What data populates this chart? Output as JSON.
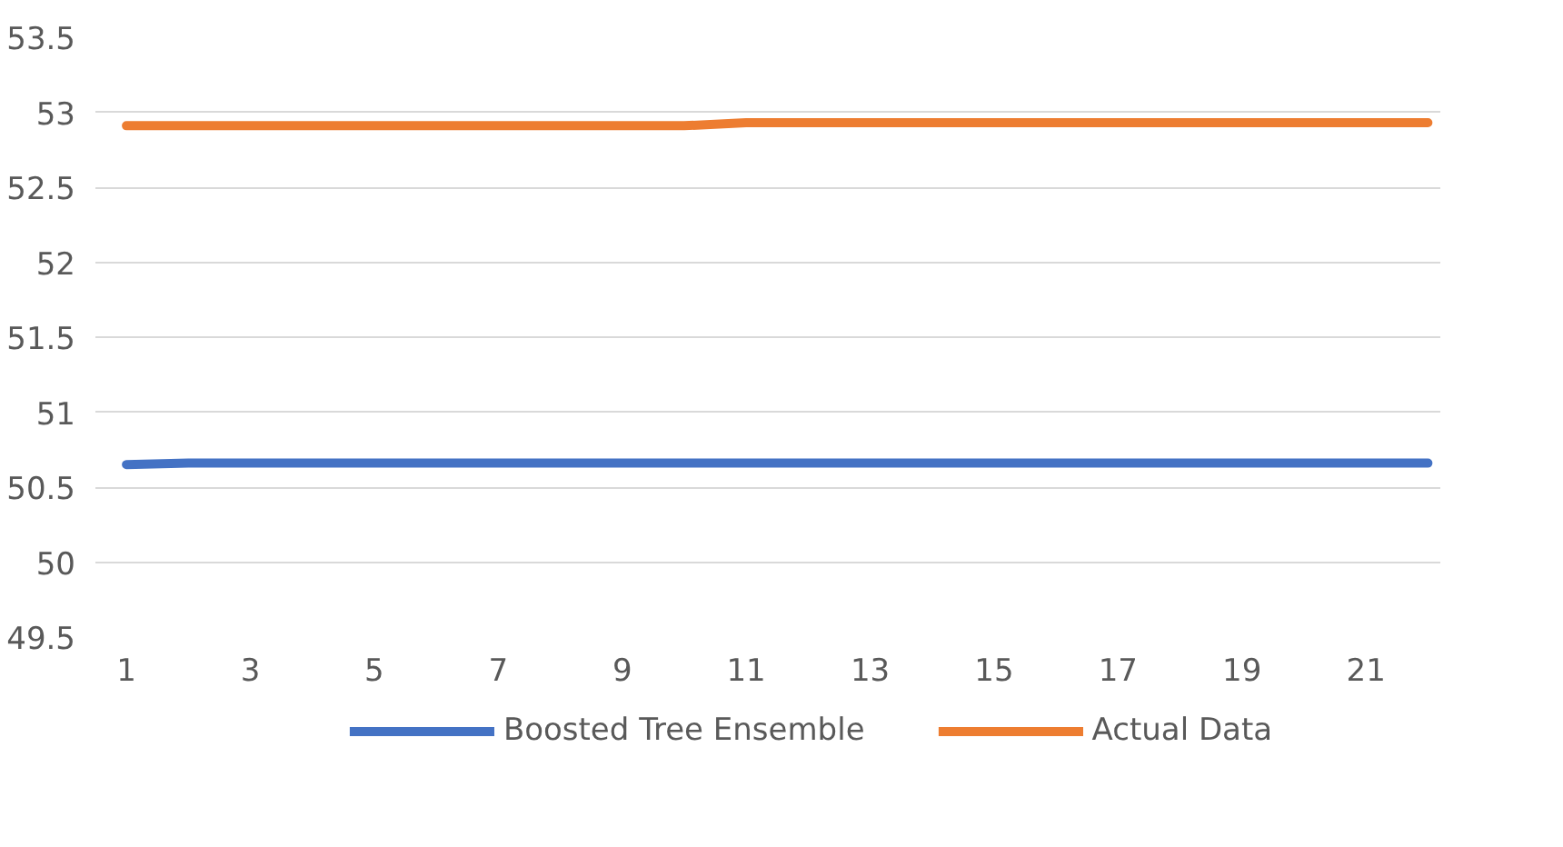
{
  "chart_data": {
    "type": "line",
    "x": [
      1,
      2,
      3,
      4,
      5,
      6,
      7,
      8,
      9,
      10,
      11,
      12,
      13,
      14,
      15,
      16,
      17,
      18,
      19,
      20,
      21,
      22
    ],
    "series": [
      {
        "name": "Boosted Tree Ensemble",
        "color": "#4472c4",
        "values": [
          50.65,
          50.66,
          50.66,
          50.66,
          50.66,
          50.66,
          50.66,
          50.66,
          50.66,
          50.66,
          50.66,
          50.66,
          50.66,
          50.66,
          50.66,
          50.66,
          50.66,
          50.66,
          50.66,
          50.66,
          50.66,
          50.66
        ]
      },
      {
        "name": "Actual Data",
        "color": "#ed7d31",
        "values": [
          52.91,
          52.91,
          52.91,
          52.91,
          52.91,
          52.91,
          52.91,
          52.91,
          52.91,
          52.91,
          52.93,
          52.93,
          52.93,
          52.93,
          52.93,
          52.93,
          52.93,
          52.93,
          52.93,
          52.93,
          52.93,
          52.93
        ]
      }
    ],
    "xlim": [
      0.5,
      22.2
    ],
    "xticks": [
      1,
      3,
      5,
      7,
      9,
      11,
      13,
      15,
      17,
      19,
      21
    ],
    "ylim": [
      49.5,
      53.5
    ],
    "yticks": [
      49.5,
      50,
      50.5,
      51,
      51.5,
      52,
      52.5,
      53,
      53.5
    ],
    "grid": "y",
    "legend": "bottom",
    "marker": "none",
    "line_style": "solid"
  }
}
